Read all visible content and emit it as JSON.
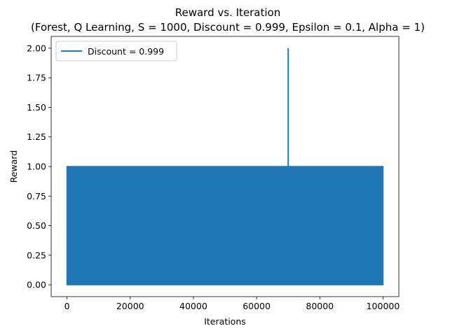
{
  "chart_data": {
    "type": "line",
    "title": "Reward vs. Iteration",
    "subtitle": "(Forest, Q Learning, S = 1000, Discount = 0.999, Epsilon = 0.1, Alpha = 1)",
    "xlabel": "Iterations",
    "ylabel": "Reward",
    "xlim": [
      -5000,
      105000
    ],
    "ylim": [
      -0.1,
      2.1
    ],
    "xticks": [
      0,
      20000,
      40000,
      60000,
      80000,
      100000
    ],
    "xtick_labels": [
      "0",
      "20000",
      "40000",
      "60000",
      "80000",
      "100000"
    ],
    "yticks": [
      0.0,
      0.25,
      0.5,
      0.75,
      1.0,
      1.25,
      1.5,
      1.75,
      2.0
    ],
    "ytick_labels": [
      "0.00",
      "0.25",
      "0.50",
      "0.75",
      "1.00",
      "1.25",
      "1.50",
      "1.75",
      "2.00"
    ],
    "grid": false,
    "legend_position": "top-left",
    "series": [
      {
        "name": "Discount = 0.999",
        "color": "#1f77b4",
        "description_values": "reward oscillates between 0 and 1 across all iterations, with a single spike to 2",
        "band": {
          "x_start": 0,
          "x_end": 100000,
          "y_low": 0,
          "y_high": 1
        },
        "spikes": [
          {
            "x": 70000,
            "y": 2
          }
        ]
      }
    ]
  }
}
